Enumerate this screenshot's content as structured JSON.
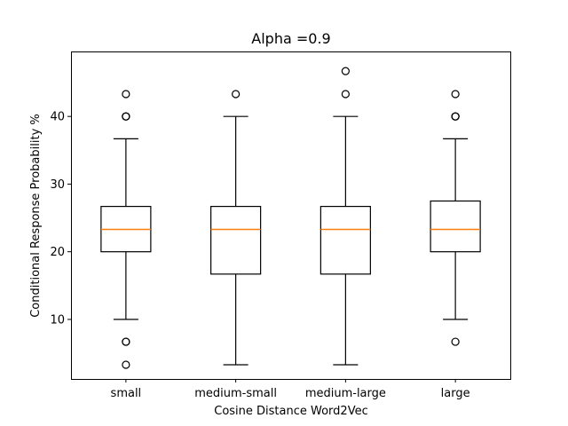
{
  "chart_data": {
    "type": "box",
    "title": "Alpha =0.9",
    "xlabel": "Cosine Distance Word2Vec",
    "ylabel": "Conditional Response Probability %",
    "ylim": [
      1.2,
      49.6
    ],
    "yticks": [
      10,
      20,
      30,
      40
    ],
    "grid": false,
    "categories": [
      "small",
      "medium-small",
      "medium-large",
      "large"
    ],
    "boxes": [
      {
        "category": "small",
        "whisker_low": 10.0,
        "q1": 20.0,
        "median": 23.3,
        "q3": 26.7,
        "whisker_high": 36.7,
        "outliers": [
          3.3,
          6.7,
          6.7,
          40.0,
          40.0,
          40.0,
          43.3
        ]
      },
      {
        "category": "medium-small",
        "whisker_low": 3.3,
        "q1": 16.7,
        "median": 23.3,
        "q3": 26.7,
        "whisker_high": 40.0,
        "outliers": [
          43.3
        ]
      },
      {
        "category": "medium-large",
        "whisker_low": 3.3,
        "q1": 16.7,
        "median": 23.3,
        "q3": 26.7,
        "whisker_high": 40.0,
        "outliers": [
          43.3,
          46.7
        ]
      },
      {
        "category": "large",
        "whisker_low": 10.0,
        "q1": 20.0,
        "median": 23.3,
        "q3": 27.5,
        "whisker_high": 36.7,
        "outliers": [
          6.7,
          40.0,
          40.0,
          40.0,
          43.3
        ]
      }
    ],
    "colors": {
      "box": "#000000",
      "median": "#ff7f0e",
      "outlier": "#000000"
    }
  }
}
